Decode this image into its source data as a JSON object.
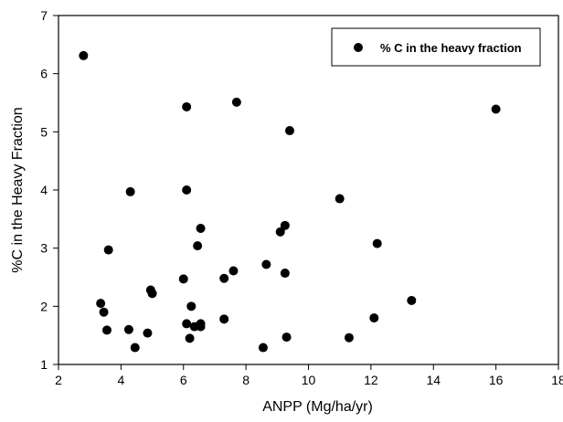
{
  "chart_data": {
    "type": "scatter",
    "xlabel": "ANPP (Mg/ha/yr)",
    "ylabel": "%C in the Heavy Fraction",
    "xlim": [
      2,
      18
    ],
    "ylim": [
      1,
      7
    ],
    "xticks": [
      "2",
      "4",
      "6",
      "8",
      "10",
      "12",
      "14",
      "16",
      "18"
    ],
    "yticks": [
      "1",
      "2",
      "3",
      "4",
      "5",
      "6",
      "7"
    ],
    "grid": false,
    "legend_position": "top-right",
    "series": [
      {
        "name": "% C in the heavy fraction",
        "color": "#000000",
        "marker": "filled-circle",
        "points": [
          {
            "x": 2.8,
            "y": 6.31
          },
          {
            "x": 6.1,
            "y": 5.43
          },
          {
            "x": 7.7,
            "y": 5.51
          },
          {
            "x": 9.4,
            "y": 5.02
          },
          {
            "x": 16.0,
            "y": 5.39
          },
          {
            "x": 4.3,
            "y": 3.97
          },
          {
            "x": 6.1,
            "y": 4.0
          },
          {
            "x": 11.0,
            "y": 3.85
          },
          {
            "x": 3.6,
            "y": 2.97
          },
          {
            "x": 6.55,
            "y": 3.34
          },
          {
            "x": 6.45,
            "y": 3.04
          },
          {
            "x": 9.25,
            "y": 3.39
          },
          {
            "x": 9.1,
            "y": 3.28
          },
          {
            "x": 12.2,
            "y": 3.08
          },
          {
            "x": 6.0,
            "y": 2.47
          },
          {
            "x": 7.3,
            "y": 2.48
          },
          {
            "x": 7.6,
            "y": 2.61
          },
          {
            "x": 8.65,
            "y": 2.72
          },
          {
            "x": 9.25,
            "y": 2.57
          },
          {
            "x": 4.95,
            "y": 2.28
          },
          {
            "x": 5.0,
            "y": 2.22
          },
          {
            "x": 3.35,
            "y": 2.05
          },
          {
            "x": 3.45,
            "y": 1.9
          },
          {
            "x": 6.25,
            "y": 2.0
          },
          {
            "x": 13.3,
            "y": 2.1
          },
          {
            "x": 3.55,
            "y": 1.59
          },
          {
            "x": 4.25,
            "y": 1.6
          },
          {
            "x": 4.85,
            "y": 1.54
          },
          {
            "x": 6.1,
            "y": 1.7
          },
          {
            "x": 6.35,
            "y": 1.65
          },
          {
            "x": 6.55,
            "y": 1.7
          },
          {
            "x": 6.55,
            "y": 1.65
          },
          {
            "x": 7.3,
            "y": 1.78
          },
          {
            "x": 12.1,
            "y": 1.8
          },
          {
            "x": 4.45,
            "y": 1.29
          },
          {
            "x": 6.2,
            "y": 1.45
          },
          {
            "x": 8.55,
            "y": 1.29
          },
          {
            "x": 9.3,
            "y": 1.47
          },
          {
            "x": 11.3,
            "y": 1.46
          }
        ]
      }
    ]
  }
}
